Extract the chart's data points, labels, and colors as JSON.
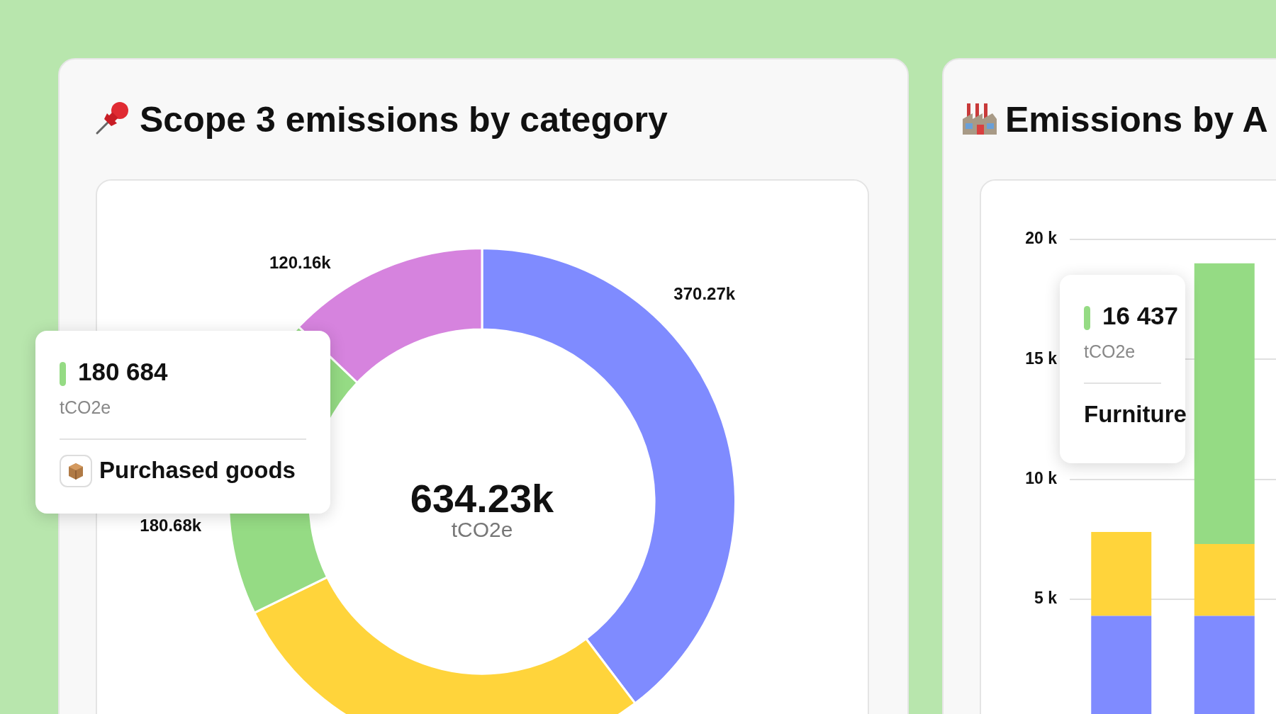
{
  "chart_data": [
    {
      "type": "donut",
      "title": "Scope 3 emissions by category",
      "categories": [
        null,
        null,
        null,
        null
      ],
      "values": [
        370.27,
        262,
        180.68,
        120.16
      ],
      "colors": [
        "#7f8bff",
        "#ffd43b",
        "#95db84",
        "#d683de"
      ],
      "value_labels": [
        "370.27k",
        null,
        "180.68k",
        "120.16k"
      ],
      "annotations": [
        "634.23k",
        "tCO2e",
        "180 684",
        "tCO2e",
        "Purchased goods"
      ]
    },
    {
      "type": "bar",
      "title": "Emissions by A",
      "categories": [
        null,
        null
      ],
      "stacked": true,
      "series": [
        {
          "color": "#7f8bff",
          "values": [
            4300,
            4300
          ]
        },
        {
          "color": "#ffd43b",
          "values": [
            3500,
            3000
          ]
        },
        {
          "color": "#95db84",
          "values": [
            null,
            11700
          ]
        }
      ],
      "ylim": [
        0,
        20000
      ],
      "yticks": [
        {
          "value": 5000,
          "label": "5 k"
        },
        {
          "value": 10000,
          "label": "10 k"
        },
        {
          "value": 15000,
          "label": "15 k"
        },
        {
          "value": 20000,
          "label": "20 k"
        }
      ],
      "grid": "y",
      "annotations": [
        "16 437",
        "tCO2e",
        "Furniture"
      ]
    }
  ]
}
